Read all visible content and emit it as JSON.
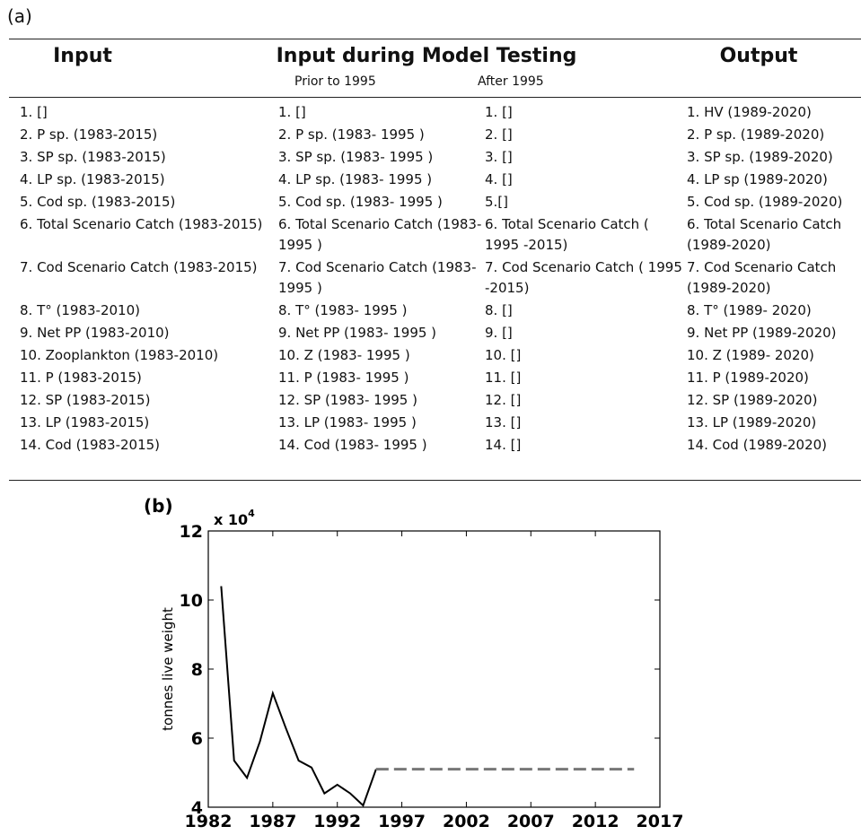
{
  "panel_a": {
    "label": "(a)",
    "headers": [
      "Input",
      "Input during Model Testing",
      "Output"
    ],
    "subheaders": [
      "Prior to 1995",
      "After 1995"
    ],
    "rows": [
      [
        "1. []",
        "1. []",
        "1. []",
        "1. HV (1989-2020)"
      ],
      [
        "2. P sp. (1983-2015)",
        "2. P sp. (1983- 1995 )",
        "2. []",
        "2. P sp. (1989-2020)"
      ],
      [
        "3. SP sp. (1983-2015)",
        "3. SP sp. (1983- 1995 )",
        "3. []",
        "3. SP sp. (1989-2020)"
      ],
      [
        "4. LP sp. (1983-2015)",
        "4. LP sp. (1983- 1995 )",
        "4. []",
        "4. LP sp (1989-2020)"
      ],
      [
        "5. Cod sp. (1983-2015)",
        "5. Cod sp. (1983- 1995 )",
        "5.[]",
        "5. Cod sp. (1989-2020)"
      ],
      [
        "6. Total Scenario Catch (1983-2015)",
        "6. Total Scenario Catch (1983- 1995 )",
        "6. Total Scenario Catch ( 1995 -2015)",
        "6. Total Scenario Catch (1989-2020)"
      ],
      [
        "7. Cod Scenario Catch (1983-2015)",
        "7. Cod Scenario Catch (1983- 1995 )",
        "7. Cod Scenario Catch ( 1995 -2015)",
        "7. Cod Scenario Catch (1989-2020)"
      ],
      [
        "8. T° (1983-2010)",
        "8. T° (1983- 1995 )",
        "8. []",
        "8. T° (1989- 2020)"
      ],
      [
        "9. Net PP (1983-2010)",
        "9. Net PP (1983- 1995 )",
        "9. []",
        "9. Net PP (1989-2020)"
      ],
      [
        "10. Zooplankton (1983-2010)",
        "10. Z (1983- 1995 )",
        "10. []",
        "10. Z (1989- 2020)"
      ],
      [
        "11. P (1983-2015)",
        "11. P (1983- 1995 )",
        "11. []",
        "11. P (1989-2020)"
      ],
      [
        "12. SP (1983-2015)",
        "12. SP (1983- 1995 )",
        "12. []",
        "12. SP (1989-2020)"
      ],
      [
        "13. LP (1983-2015)",
        "13. LP (1983- 1995 )",
        "13. []",
        "13. LP (1989-2020)"
      ],
      [
        "14. Cod (1983-2015)",
        "14. Cod (1983- 1995 )",
        "14. []",
        "14. Cod (1989-2020)"
      ]
    ]
  },
  "chart_data": {
    "type": "line",
    "panel_label": "(b)",
    "y_label": "tonnes live weight",
    "y_multiplier": "x 10",
    "y_multiplier_exponent": "4",
    "xlim": [
      1982,
      2017
    ],
    "xticks": [
      1982,
      1987,
      1992,
      1997,
      2002,
      2007,
      2012,
      2017
    ],
    "ylim": [
      4,
      12
    ],
    "yticks": [
      4,
      6,
      8,
      10,
      12
    ],
    "series": [
      {
        "color": "#000000",
        "dashed": false,
        "x": [
          1983,
          1984,
          1985,
          1986,
          1987,
          1988,
          1989,
          1990,
          1991,
          1992,
          1993,
          1994,
          1995
        ],
        "values": [
          10.4,
          5.35,
          4.85,
          5.9,
          7.3,
          6.3,
          5.35,
          5.15,
          4.4,
          4.65,
          4.4,
          4.05,
          5.1
        ]
      },
      {
        "color": "#777777",
        "dashed": true,
        "x": [
          1995,
          2015
        ],
        "values": [
          5.1,
          5.1
        ]
      }
    ]
  }
}
